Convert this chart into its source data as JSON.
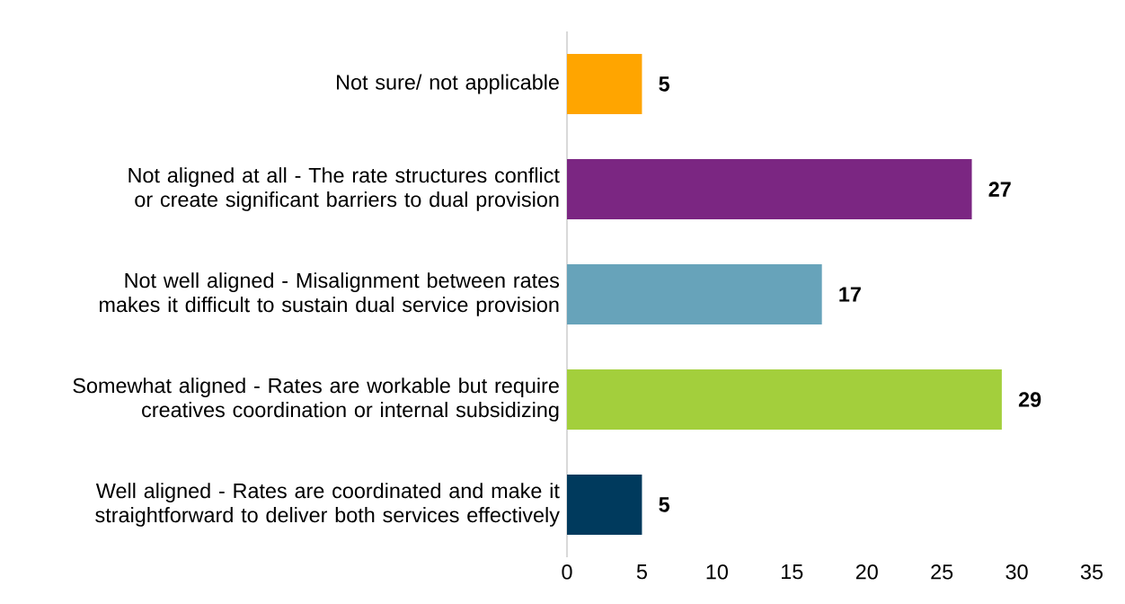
{
  "chart_data": {
    "type": "bar",
    "orientation": "horizontal",
    "categories": [
      "Not sure/ not applicable",
      "Not aligned at all - The rate structures conflict or create significant barriers to dual provision",
      "Not well aligned - Misalignment between rates makes it difficult to sustain dual service provision",
      "Somewhat aligned - Rates are workable but require creatives coordination or internal subsidizing",
      "Well aligned - Rates are coordinated and make it straightforward to deliver both services effectively"
    ],
    "values": [
      5,
      27,
      17,
      29,
      5
    ],
    "colors": [
      "#ffa500",
      "#7b2682",
      "#67a3ba",
      "#a3cf3c",
      "#003a5d"
    ],
    "xlim": [
      0,
      35
    ],
    "xticks": [
      0,
      5,
      10,
      15,
      20,
      25,
      30,
      35
    ],
    "data_labels": true
  }
}
